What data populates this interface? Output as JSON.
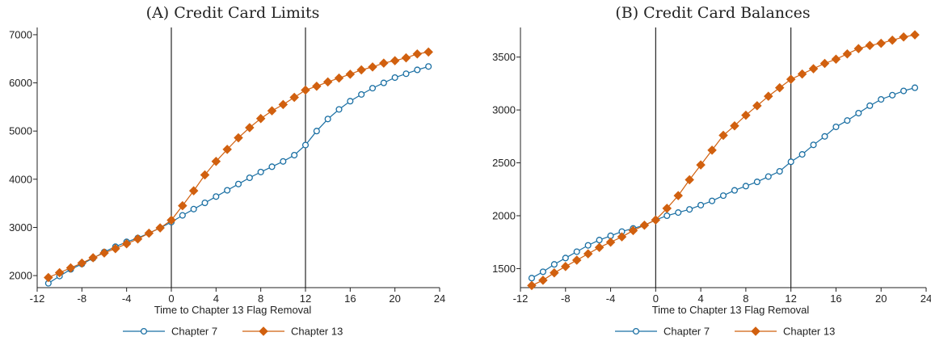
{
  "colors": {
    "chapter7": "#1a6fa3",
    "chapter13": "#d1600f"
  },
  "chart_data": [
    {
      "type": "line",
      "title": "(A) Credit Card Limits",
      "xlabel": "Time to Chapter 13 Flag Removal",
      "ylabel": "",
      "xlim": [
        -12,
        24
      ],
      "ylim": [
        1750,
        7150
      ],
      "xticks": [
        -12,
        -8,
        -4,
        0,
        4,
        8,
        12,
        16,
        20,
        24
      ],
      "yticks": [
        2000,
        3000,
        4000,
        5000,
        6000,
        7000
      ],
      "vlines": [
        0,
        12
      ],
      "legend_position": "bottom",
      "grid": false,
      "x": [
        -11,
        -10,
        -9,
        -8,
        -7,
        -6,
        -5,
        -4,
        -3,
        -2,
        -1,
        0,
        1,
        2,
        3,
        4,
        5,
        6,
        7,
        8,
        9,
        10,
        11,
        12,
        13,
        14,
        15,
        16,
        17,
        18,
        19,
        20,
        21,
        22,
        23
      ],
      "series": [
        {
          "name": "Chapter 7",
          "marker": "circle",
          "values": [
            1840,
            1990,
            2130,
            2240,
            2360,
            2490,
            2600,
            2700,
            2780,
            2880,
            2990,
            3110,
            3250,
            3380,
            3510,
            3640,
            3770,
            3900,
            4030,
            4150,
            4260,
            4370,
            4500,
            4710,
            5000,
            5250,
            5450,
            5620,
            5760,
            5890,
            6000,
            6110,
            6190,
            6270,
            6340
          ]
        },
        {
          "name": "Chapter 13",
          "marker": "diamond",
          "values": [
            1960,
            2060,
            2160,
            2260,
            2370,
            2470,
            2560,
            2660,
            2760,
            2880,
            2990,
            3150,
            3450,
            3760,
            4090,
            4370,
            4620,
            4860,
            5070,
            5260,
            5420,
            5550,
            5700,
            5850,
            5930,
            6020,
            6100,
            6180,
            6270,
            6330,
            6410,
            6460,
            6520,
            6600,
            6640
          ]
        }
      ]
    },
    {
      "type": "line",
      "title": "(B) Credit Card Balances",
      "xlabel": "Time to Chapter 13 Flag Removal",
      "ylabel": "",
      "xlim": [
        -12,
        24
      ],
      "ylim": [
        1320,
        3780
      ],
      "xticks": [
        -12,
        -8,
        -4,
        0,
        4,
        8,
        12,
        16,
        20,
        24
      ],
      "yticks": [
        1500,
        2000,
        2500,
        3000,
        3500
      ],
      "vlines": [
        0,
        12
      ],
      "legend_position": "bottom",
      "grid": false,
      "x": [
        -11,
        -10,
        -9,
        -8,
        -7,
        -6,
        -5,
        -4,
        -3,
        -2,
        -1,
        0,
        1,
        2,
        3,
        4,
        5,
        6,
        7,
        8,
        9,
        10,
        11,
        12,
        13,
        14,
        15,
        16,
        17,
        18,
        19,
        20,
        21,
        22,
        23
      ],
      "series": [
        {
          "name": "Chapter 7",
          "marker": "circle",
          "values": [
            1410,
            1470,
            1540,
            1600,
            1660,
            1720,
            1770,
            1810,
            1850,
            1880,
            1910,
            1960,
            2000,
            2030,
            2060,
            2100,
            2140,
            2190,
            2240,
            2280,
            2320,
            2370,
            2420,
            2510,
            2580,
            2670,
            2750,
            2840,
            2900,
            2970,
            3040,
            3100,
            3140,
            3180,
            3210
          ]
        },
        {
          "name": "Chapter 13",
          "marker": "diamond",
          "values": [
            1340,
            1390,
            1460,
            1520,
            1580,
            1640,
            1700,
            1750,
            1800,
            1860,
            1910,
            1960,
            2070,
            2190,
            2340,
            2480,
            2620,
            2760,
            2850,
            2950,
            3040,
            3130,
            3210,
            3290,
            3340,
            3390,
            3440,
            3480,
            3530,
            3580,
            3610,
            3630,
            3660,
            3690,
            3710
          ]
        }
      ]
    }
  ]
}
